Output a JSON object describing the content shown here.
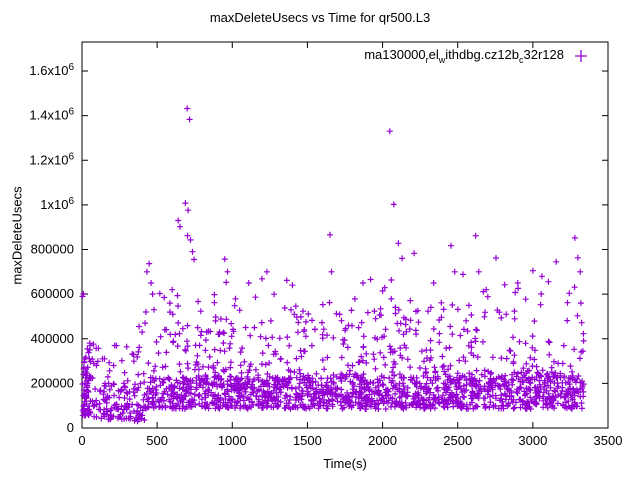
{
  "accent_color": "#9400d3",
  "chart_data": {
    "type": "scatter",
    "title": "maxDeleteUsecs vs Time for qr500.L3",
    "xlabel": "Time(s)",
    "ylabel": "maxDeleteUsecs",
    "xlim": [
      0,
      3500
    ],
    "ylim": [
      0,
      1730000
    ],
    "grid": false,
    "x_ticks": [
      {
        "label": "0",
        "value": 0
      },
      {
        "label": "500",
        "value": 500
      },
      {
        "label": "1000",
        "value": 1000
      },
      {
        "label": "1500",
        "value": 1500
      },
      {
        "label": "2000",
        "value": 2000
      },
      {
        "label": "2500",
        "value": 2500
      },
      {
        "label": "3000",
        "value": 3000
      },
      {
        "label": "3500",
        "value": 3500
      }
    ],
    "y_ticks": [
      {
        "label": "0",
        "value": 0
      },
      {
        "label": "200000",
        "value": 200000
      },
      {
        "label": "400000",
        "value": 400000
      },
      {
        "label": "600000",
        "value": 600000
      },
      {
        "label": "800000",
        "value": 800000
      },
      {
        "label": "1x10",
        "sup": "6",
        "value": 1000000
      },
      {
        "label": "1.2x10",
        "sup": "6",
        "value": 1200000
      },
      {
        "label": "1.4x10",
        "sup": "6",
        "value": 1400000
      },
      {
        "label": "1.6x10",
        "sup": "6",
        "value": 1600000
      }
    ],
    "legend": {
      "position": "top-right-inside",
      "label_raw": "ma130000_rel_withdbg.cz12b_c32r128",
      "segments": [
        {
          "t": "ma130000"
        },
        {
          "t": "r",
          "sub": true
        },
        {
          "t": "el"
        },
        {
          "t": "w",
          "sub": true
        },
        {
          "t": "ithdbg.cz12b"
        },
        {
          "t": "c",
          "sub": true
        },
        {
          "t": "32r128"
        }
      ]
    },
    "marker": {
      "shape": "plus",
      "color": "#9400d3",
      "size": 7
    },
    "seed": 1337,
    "outlier_points": [
      [
        3,
        590000
      ],
      [
        9,
        601000
      ],
      [
        52,
        380000
      ],
      [
        150,
        310000
      ],
      [
        210,
        280000
      ],
      [
        350,
        33000
      ],
      [
        370,
        30000
      ],
      [
        395,
        42000
      ],
      [
        415,
        36000
      ],
      [
        380,
        455000
      ],
      [
        400,
        430000
      ],
      [
        420,
        470000
      ],
      [
        425,
        520000
      ],
      [
        432,
        700000
      ],
      [
        447,
        737000
      ],
      [
        460,
        650000
      ],
      [
        470,
        600000
      ],
      [
        585,
        560000
      ],
      [
        600,
        620000
      ],
      [
        640,
        930000
      ],
      [
        652,
        902000
      ],
      [
        688,
        1008000
      ],
      [
        700,
        1432000
      ],
      [
        706,
        976000
      ],
      [
        716,
        1383000
      ],
      [
        702,
        862000
      ],
      [
        722,
        843000
      ],
      [
        735,
        790000
      ],
      [
        745,
        755000
      ],
      [
        950,
        757000
      ],
      [
        968,
        700000
      ],
      [
        1110,
        650000
      ],
      [
        1230,
        700000
      ],
      [
        1400,
        640000
      ],
      [
        1650,
        866000
      ],
      [
        1660,
        700000
      ],
      [
        1870,
        650000
      ],
      [
        2048,
        1330000
      ],
      [
        2075,
        1002000
      ],
      [
        2105,
        828000
      ],
      [
        2130,
        760000
      ],
      [
        2210,
        783000
      ],
      [
        2340,
        650000
      ],
      [
        2455,
        817000
      ],
      [
        2480,
        700000
      ],
      [
        2620,
        862000
      ],
      [
        2640,
        700000
      ],
      [
        2755,
        762000
      ],
      [
        2900,
        650000
      ],
      [
        3000,
        705000
      ],
      [
        3060,
        680000
      ],
      [
        3155,
        745000
      ],
      [
        3280,
        852000
      ],
      [
        3300,
        763000
      ],
      [
        3315,
        700000
      ],
      [
        3320,
        560000
      ]
    ],
    "dense_bands": [
      {
        "x": [
          2,
          62
        ],
        "y": [
          55000,
          390000
        ],
        "n": 70,
        "bias": 1.5
      },
      {
        "x": [
          62,
          430
        ],
        "y": [
          38000,
          200000
        ],
        "n": 120,
        "bias": 1.2
      },
      {
        "x": [
          62,
          430
        ],
        "y": [
          200000,
          380000
        ],
        "n": 28,
        "bias": 1.4
      },
      {
        "x": [
          430,
          3340
        ],
        "y": [
          85000,
          225000
        ],
        "n": 1250,
        "bias": 1.0
      },
      {
        "x": [
          430,
          3340
        ],
        "y": [
          225000,
          530000
        ],
        "n": 430,
        "bias": 1.6
      },
      {
        "x": [
          430,
          3340
        ],
        "y": [
          530000,
          690000
        ],
        "n": 48,
        "bias": 1.2
      }
    ]
  }
}
